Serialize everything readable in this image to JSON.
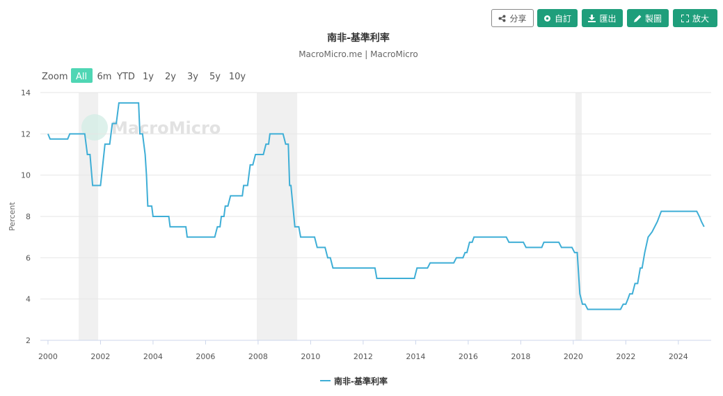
{
  "toolbar": {
    "share": "分享",
    "customize": "自訂",
    "export": "匯出",
    "draw": "製圖",
    "expand": "放大"
  },
  "zoom": {
    "label": "Zoom",
    "options": [
      "All",
      "6m",
      "YTD",
      "1y",
      "2y",
      "3y",
      "5y",
      "10y"
    ],
    "active": 0
  },
  "chart_data": {
    "type": "line",
    "title": "南非-基準利率",
    "subtitle": "MacroMicro.me | MacroMicro",
    "watermark": "MacroMicro",
    "y_label": "Percent",
    "grid": true,
    "xlim": [
      1999.71,
      2025.25
    ],
    "xticks": [
      2000,
      2002,
      2004,
      2006,
      2008,
      2010,
      2012,
      2014,
      2016,
      2018,
      2020,
      2022,
      2024
    ],
    "ylim": [
      2,
      14
    ],
    "yticks": [
      2,
      4,
      6,
      8,
      10,
      12,
      14
    ],
    "shaded_color": "#f0f0f0",
    "shaded_periods": [
      [
        2001.17,
        2001.91
      ],
      [
        2007.95,
        2009.49
      ],
      [
        2020.08,
        2020.32
      ]
    ],
    "x": [
      2000.0,
      2000.08,
      2000.75,
      2000.83,
      2001.4,
      2001.5,
      2001.6,
      2001.7,
      2002.0,
      2002.17,
      2002.35,
      2002.45,
      2002.6,
      2002.7,
      2003.45,
      2003.5,
      2003.6,
      2003.7,
      2003.75,
      2003.8,
      2003.95,
      2004.0,
      2004.6,
      2004.65,
      2005.25,
      2005.3,
      2006.35,
      2006.45,
      2006.55,
      2006.6,
      2006.7,
      2006.75,
      2006.85,
      2006.95,
      2007.4,
      2007.45,
      2007.6,
      2007.7,
      2007.8,
      2007.9,
      2008.2,
      2008.3,
      2008.4,
      2008.45,
      2008.95,
      2009.05,
      2009.15,
      2009.2,
      2009.25,
      2009.4,
      2009.55,
      2009.62,
      2010.15,
      2010.25,
      2010.55,
      2010.65,
      2010.75,
      2010.85,
      2012.45,
      2012.52,
      2013.95,
      2014.05,
      2014.45,
      2014.55,
      2015.45,
      2015.55,
      2015.8,
      2015.88,
      2015.95,
      2016.05,
      2016.15,
      2016.22,
      2017.45,
      2017.55,
      2018.1,
      2018.2,
      2018.8,
      2018.88,
      2019.45,
      2019.55,
      2019.95,
      2020.05,
      2020.15,
      2020.25,
      2020.35,
      2020.45,
      2020.55,
      2021.8,
      2021.9,
      2022.0,
      2022.08,
      2022.15,
      2022.25,
      2022.35,
      2022.45,
      2022.55,
      2022.62,
      2022.72,
      2022.85,
      2023.0,
      2023.2,
      2023.35,
      2024.7,
      2024.8,
      2024.88,
      2024.98
    ],
    "series": [
      {
        "name": "南非-基準利率",
        "color": "#3eaed6",
        "values": [
          12,
          11.75,
          11.75,
          12,
          12,
          11,
          11,
          9.5,
          9.5,
          11.5,
          11.5,
          12.5,
          12.5,
          13.5,
          13.5,
          12,
          12,
          11,
          10,
          8.5,
          8.5,
          8,
          8,
          7.5,
          7.5,
          7,
          7,
          7.5,
          7.5,
          8,
          8,
          8.5,
          8.5,
          9,
          9,
          9.5,
          9.5,
          10.5,
          10.5,
          11,
          11,
          11.5,
          11.5,
          12,
          12,
          11.5,
          11.5,
          9.5,
          9.5,
          7.5,
          7.5,
          7,
          7,
          6.5,
          6.5,
          6,
          6,
          5.5,
          5.5,
          5,
          5,
          5.5,
          5.5,
          5.75,
          5.75,
          6,
          6,
          6.25,
          6.25,
          6.75,
          6.75,
          7,
          7,
          6.75,
          6.75,
          6.5,
          6.5,
          6.75,
          6.75,
          6.5,
          6.5,
          6.25,
          6.25,
          4.25,
          3.75,
          3.75,
          3.5,
          3.5,
          3.75,
          3.75,
          4,
          4.25,
          4.25,
          4.75,
          4.75,
          5.5,
          5.5,
          6.25,
          7,
          7.25,
          7.75,
          8.25,
          8.25,
          8,
          7.75,
          7.5
        ]
      }
    ]
  }
}
